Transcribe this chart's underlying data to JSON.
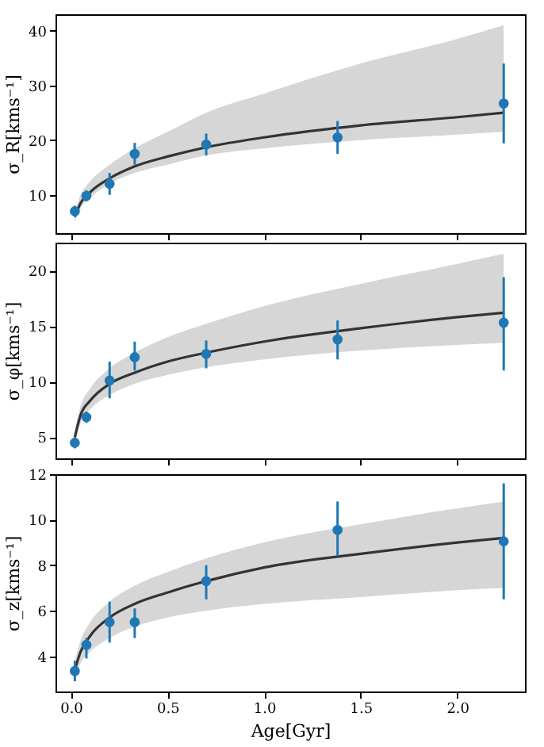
{
  "chart_data": [
    {
      "type": "scatter",
      "ylabel": "σ_R[kms⁻¹]",
      "xlim": [
        -0.08,
        2.35
      ],
      "xticks": [
        {
          "value": 0,
          "label": null
        },
        {
          "value": 0.5,
          "label": null
        },
        {
          "value": 1,
          "label": null
        },
        {
          "value": 1.5,
          "label": null
        },
        {
          "value": 2,
          "label": null
        }
      ],
      "ylim": [
        3,
        43
      ],
      "yticks": [
        10,
        20,
        30,
        40
      ],
      "tick_labels": "y",
      "grid": false,
      "series": [
        {
          "type": "line",
          "color": "#333333",
          "x": [
            0.02,
            0.05,
            0.1,
            0.2,
            0.33,
            0.5,
            0.7,
            1.0,
            1.5,
            2.0,
            2.24
          ],
          "values": [
            6,
            8.5,
            10.5,
            13,
            15.2,
            17,
            18.7,
            20.5,
            22.7,
            24.2,
            25
          ],
          "lower": [
            5,
            7.5,
            9.5,
            12,
            14,
            15.5,
            17.2,
            18.5,
            20,
            21,
            21.5
          ],
          "upper": [
            7,
            10,
            12.5,
            15.5,
            18.5,
            21.5,
            25,
            28.5,
            34,
            38.5,
            41
          ]
        },
        {
          "type": "scatter",
          "color": "#1f77b4",
          "marker": "circle",
          "x": [
            0.02,
            0.08,
            0.2,
            0.33,
            0.7,
            1.38,
            2.24
          ],
          "values": [
            7,
            9.8,
            12,
            17.5,
            19.2,
            20.5,
            26.7
          ],
          "errors": [
            1,
            1,
            2,
            2,
            2,
            3,
            7.3
          ]
        }
      ]
    },
    {
      "type": "scatter",
      "ylabel": "σ_φ[kms⁻¹]",
      "xlim": [
        -0.08,
        2.35
      ],
      "xticks": [
        {
          "value": 0,
          "label": null
        },
        {
          "value": 0.5,
          "label": null
        },
        {
          "value": 1,
          "label": null
        },
        {
          "value": 1.5,
          "label": null
        },
        {
          "value": 2,
          "label": null
        }
      ],
      "ylim": [
        3.1,
        22.5
      ],
      "yticks": [
        5,
        10,
        15,
        20
      ],
      "tick_labels": "y",
      "grid": false,
      "series": [
        {
          "type": "line",
          "color": "#333333",
          "x": [
            0.02,
            0.05,
            0.1,
            0.2,
            0.33,
            0.5,
            0.7,
            1.0,
            1.5,
            2.0,
            2.24
          ],
          "values": [
            5,
            7,
            8.3,
            9.8,
            10.8,
            11.8,
            12.6,
            13.6,
            14.8,
            15.8,
            16.2
          ],
          "lower": [
            4.5,
            6.3,
            7.5,
            8.8,
            9.8,
            10.6,
            11.3,
            12,
            12.8,
            13.3,
            13.5
          ],
          "upper": [
            5.6,
            7.8,
            9.4,
            11.2,
            12.6,
            14,
            15.2,
            16.8,
            18.8,
            20.6,
            21.5
          ]
        },
        {
          "type": "scatter",
          "color": "#1f77b4",
          "marker": "circle",
          "x": [
            0.02,
            0.08,
            0.2,
            0.33,
            0.7,
            1.38,
            2.24
          ],
          "values": [
            4.5,
            6.8,
            10.1,
            12.2,
            12.5,
            13.8,
            15.3
          ],
          "errors": [
            [
              4,
              5
            ],
            [
              6.3,
              7.3
            ],
            [
              8.5,
              11.8
            ],
            [
              11,
              13.6
            ],
            [
              11.2,
              13.7
            ],
            [
              12,
              15.5
            ],
            [
              11,
              19.4
            ]
          ]
        }
      ]
    },
    {
      "type": "scatter",
      "ylabel": "σ_z[kms⁻¹]",
      "xlabel": "Age[Gyr]",
      "xlim": [
        -0.08,
        2.35
      ],
      "xticks": [
        {
          "value": 0,
          "label": "0.0"
        },
        0.5,
        {
          "value": 1,
          "label": "1.0"
        },
        1.5,
        {
          "value": 2,
          "label": "2.0"
        }
      ],
      "ylim": [
        2.45,
        12
      ],
      "yticks": [
        4,
        6,
        8,
        10,
        12
      ],
      "grid": false,
      "series": [
        {
          "type": "line",
          "color": "#333333",
          "x": [
            0.02,
            0.05,
            0.1,
            0.2,
            0.33,
            0.5,
            0.7,
            1.0,
            1.5,
            2.0,
            2.24
          ],
          "values": [
            3.4,
            4.2,
            4.9,
            5.7,
            6.3,
            6.8,
            7.3,
            7.9,
            8.5,
            9,
            9.2
          ],
          "lower": [
            3.1,
            3.7,
            4.2,
            4.8,
            5.3,
            5.7,
            6,
            6.3,
            6.6,
            6.9,
            7
          ],
          "upper": [
            3.8,
            4.7,
            5.5,
            6.4,
            7.1,
            7.7,
            8.3,
            9,
            9.8,
            10.5,
            10.8
          ]
        },
        {
          "type": "scatter",
          "color": "#1f77b4",
          "marker": "circle",
          "x": [
            0.02,
            0.08,
            0.2,
            0.33,
            0.7,
            1.38,
            2.24
          ],
          "values": [
            3.35,
            4.5,
            5.5,
            5.5,
            7.3,
            9.55,
            9.05
          ],
          "errors": [
            [
              2.9,
              3.8
            ],
            [
              3.9,
              4.8
            ],
            [
              4.6,
              6.4
            ],
            [
              4.8,
              6.1
            ],
            [
              6.5,
              8
            ],
            [
              8.4,
              10.8
            ],
            [
              6.5,
              11.6
            ]
          ]
        }
      ]
    }
  ]
}
